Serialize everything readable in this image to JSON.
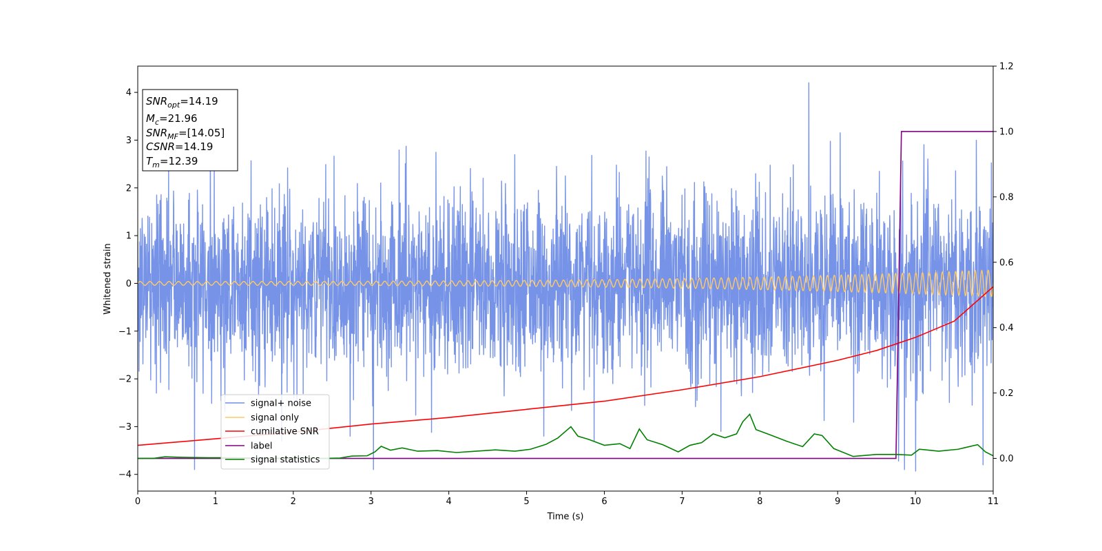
{
  "chart_data": {
    "type": "line",
    "xlabel": "Time (s)",
    "ylabel": "Whitened strain",
    "xlim": [
      0,
      11
    ],
    "ylim_left": [
      -4.35,
      4.55
    ],
    "ylim_right": [
      -0.1,
      1.2
    ],
    "x_ticks": [
      "0",
      "1",
      "2",
      "3",
      "4",
      "5",
      "6",
      "7",
      "8",
      "9",
      "10",
      "11"
    ],
    "y_ticks_left": [
      "−4",
      "−3",
      "−2",
      "−1",
      "0",
      "1",
      "2",
      "3",
      "4"
    ],
    "y_ticks_right": [
      "0.0",
      "0.2",
      "0.4",
      "0.6",
      "0.8",
      "1.0",
      "1.2"
    ],
    "info_box": {
      "snr_opt": "=14.19",
      "mc": "=21.96",
      "snr_mf": "=[14.05]",
      "csnr": "=14.19",
      "tm": "=12.39"
    },
    "legend_position": "lower-left",
    "series": [
      {
        "name": "signal+ noise",
        "axis": "left",
        "color": "#6f8de6",
        "style": "noise",
        "std": 0.95,
        "spikes": [
          [
            0.73,
            -3.9
          ],
          [
            3.03,
            -3.9
          ],
          [
            5.22,
            -3.2
          ],
          [
            5.87,
            -3.3
          ],
          [
            8.63,
            4.2
          ],
          [
            9.86,
            -3.9
          ],
          [
            10.87,
            -3.8
          ],
          [
            1.85,
            -3.3
          ],
          [
            2.73,
            -3.2
          ],
          [
            7.5,
            -3.1
          ]
        ]
      },
      {
        "name": "signal only",
        "axis": "left",
        "color": "#ffc966",
        "style": "chirp",
        "amplitude_start": 0.04,
        "amplitude_end": 0.28,
        "cycles": 110
      },
      {
        "name": "cumilative SNR",
        "axis": "right",
        "color": "#ff0000",
        "style": "curve",
        "points": [
          [
            0,
            0.04
          ],
          [
            1,
            0.06
          ],
          [
            2,
            0.08
          ],
          [
            3,
            0.105
          ],
          [
            4,
            0.125
          ],
          [
            5,
            0.15
          ],
          [
            6,
            0.175
          ],
          [
            7,
            0.21
          ],
          [
            8,
            0.25
          ],
          [
            9,
            0.3
          ],
          [
            9.5,
            0.33
          ],
          [
            10,
            0.37
          ],
          [
            10.5,
            0.42
          ],
          [
            11,
            0.525
          ]
        ]
      },
      {
        "name": "label",
        "axis": "right",
        "color": "#800080",
        "style": "step",
        "points": [
          [
            0,
            0
          ],
          [
            9.75,
            0
          ],
          [
            9.82,
            1
          ],
          [
            11,
            1
          ]
        ]
      },
      {
        "name": "signal statistics",
        "axis": "right",
        "color": "#008000",
        "style": "curve",
        "points": [
          [
            0,
            0
          ],
          [
            0.2,
            0
          ],
          [
            0.35,
            0.005
          ],
          [
            0.6,
            0.003
          ],
          [
            0.9,
            0.002
          ],
          [
            1.2,
            0.002
          ],
          [
            1.5,
            0.001
          ],
          [
            1.8,
            0
          ],
          [
            2.1,
            0.001
          ],
          [
            2.4,
            0
          ],
          [
            2.6,
            0.001
          ],
          [
            2.75,
            0.007
          ],
          [
            2.95,
            0.008
          ],
          [
            3.05,
            0.02
          ],
          [
            3.13,
            0.037
          ],
          [
            3.25,
            0.025
          ],
          [
            3.4,
            0.032
          ],
          [
            3.6,
            0.022
          ],
          [
            3.85,
            0.024
          ],
          [
            4.1,
            0.018
          ],
          [
            4.35,
            0.022
          ],
          [
            4.6,
            0.026
          ],
          [
            4.85,
            0.022
          ],
          [
            5.05,
            0.028
          ],
          [
            5.25,
            0.043
          ],
          [
            5.4,
            0.062
          ],
          [
            5.57,
            0.097
          ],
          [
            5.66,
            0.068
          ],
          [
            5.8,
            0.058
          ],
          [
            6.0,
            0.04
          ],
          [
            6.2,
            0.045
          ],
          [
            6.33,
            0.03
          ],
          [
            6.45,
            0.09
          ],
          [
            6.55,
            0.057
          ],
          [
            6.75,
            0.042
          ],
          [
            6.95,
            0.02
          ],
          [
            7.1,
            0.04
          ],
          [
            7.25,
            0.048
          ],
          [
            7.4,
            0.075
          ],
          [
            7.55,
            0.063
          ],
          [
            7.7,
            0.075
          ],
          [
            7.78,
            0.112
          ],
          [
            7.87,
            0.135
          ],
          [
            7.95,
            0.088
          ],
          [
            8.1,
            0.075
          ],
          [
            8.35,
            0.052
          ],
          [
            8.55,
            0.036
          ],
          [
            8.7,
            0.075
          ],
          [
            8.8,
            0.07
          ],
          [
            8.95,
            0.03
          ],
          [
            9.2,
            0.006
          ],
          [
            9.5,
            0.012
          ],
          [
            9.75,
            0.012
          ],
          [
            9.95,
            0.01
          ],
          [
            10.05,
            0.028
          ],
          [
            10.3,
            0.022
          ],
          [
            10.55,
            0.028
          ],
          [
            10.8,
            0.042
          ],
          [
            10.9,
            0.02
          ],
          [
            11,
            0.008
          ]
        ]
      }
    ]
  }
}
